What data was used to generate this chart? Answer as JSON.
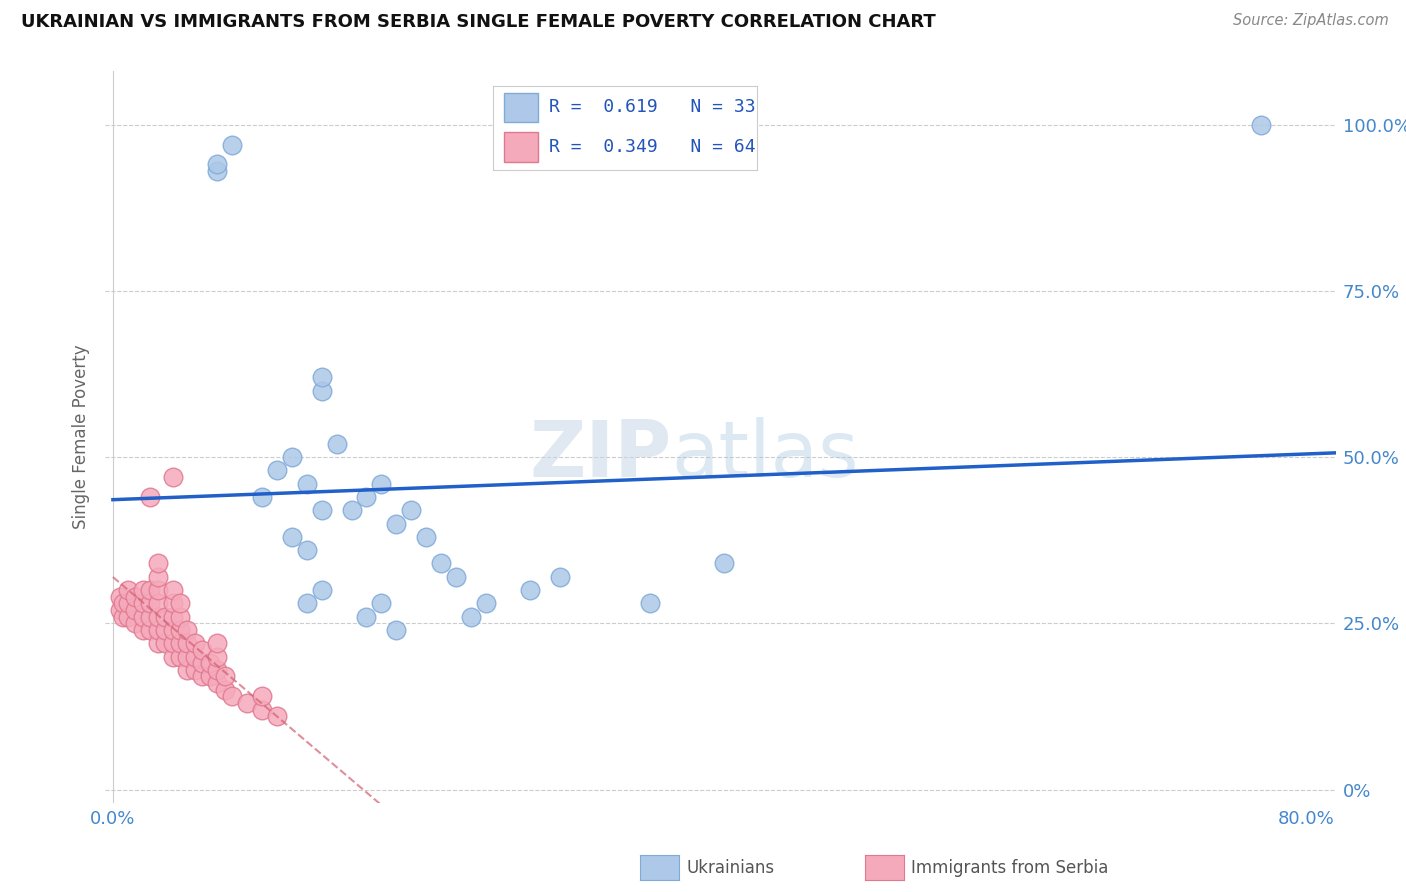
{
  "title": "UKRAINIAN VS IMMIGRANTS FROM SERBIA SINGLE FEMALE POVERTY CORRELATION CHART",
  "source": "Source: ZipAtlas.com",
  "ylabel": "Single Female Poverty",
  "xlim": [
    -0.005,
    0.82
  ],
  "ylim": [
    -0.02,
    1.08
  ],
  "x_ticks": [
    0.0,
    0.2,
    0.4,
    0.6,
    0.8
  ],
  "x_tick_labels": [
    "0.0%",
    "",
    "",
    "",
    "80.0%"
  ],
  "y_ticks": [
    0.0,
    0.25,
    0.5,
    0.75,
    1.0
  ],
  "y_tick_labels_right": [
    "0%",
    "25.0%",
    "50.0%",
    "75.0%",
    "100.0%"
  ],
  "legend_r1": "R =  0.619",
  "legend_n1": "N = 33",
  "legend_r2": "R =  0.349",
  "legend_n2": "N = 64",
  "ukraine_color": "#adc8e8",
  "serbia_color": "#f5aabb",
  "ukraine_edge_color": "#80aad8",
  "serbia_edge_color": "#e07890",
  "regression_blue_color": "#2060c8",
  "regression_pink_color": "#d06070",
  "watermark_zip": "ZIP",
  "watermark_atlas": "atlas",
  "ukraine_x": [
    0.14,
    0.14,
    0.15,
    0.1,
    0.11,
    0.12,
    0.13,
    0.14,
    0.12,
    0.13,
    0.16,
    0.17,
    0.18,
    0.19,
    0.2,
    0.21,
    0.13,
    0.14,
    0.22,
    0.23,
    0.17,
    0.18,
    0.19,
    0.24,
    0.25,
    0.28,
    0.3,
    0.36,
    0.41,
    0.07,
    0.07,
    0.08,
    0.77
  ],
  "ukraine_y": [
    0.6,
    0.62,
    0.52,
    0.44,
    0.48,
    0.5,
    0.46,
    0.42,
    0.38,
    0.36,
    0.42,
    0.44,
    0.46,
    0.4,
    0.42,
    0.38,
    0.28,
    0.3,
    0.34,
    0.32,
    0.26,
    0.28,
    0.24,
    0.26,
    0.28,
    0.3,
    0.32,
    0.28,
    0.34,
    0.93,
    0.94,
    0.97,
    1.0
  ],
  "serbia_x": [
    0.005,
    0.005,
    0.007,
    0.007,
    0.01,
    0.01,
    0.01,
    0.015,
    0.015,
    0.015,
    0.02,
    0.02,
    0.02,
    0.02,
    0.025,
    0.025,
    0.025,
    0.025,
    0.03,
    0.03,
    0.03,
    0.03,
    0.03,
    0.03,
    0.03,
    0.035,
    0.035,
    0.035,
    0.04,
    0.04,
    0.04,
    0.04,
    0.04,
    0.04,
    0.045,
    0.045,
    0.045,
    0.045,
    0.045,
    0.05,
    0.05,
    0.05,
    0.05,
    0.055,
    0.055,
    0.055,
    0.06,
    0.06,
    0.06,
    0.065,
    0.065,
    0.07,
    0.07,
    0.07,
    0.07,
    0.075,
    0.075,
    0.08,
    0.09,
    0.1,
    0.1,
    0.11,
    0.025,
    0.04
  ],
  "serbia_y": [
    0.27,
    0.29,
    0.26,
    0.28,
    0.26,
    0.28,
    0.3,
    0.25,
    0.27,
    0.29,
    0.24,
    0.26,
    0.28,
    0.3,
    0.24,
    0.26,
    0.28,
    0.3,
    0.22,
    0.24,
    0.26,
    0.28,
    0.3,
    0.32,
    0.34,
    0.22,
    0.24,
    0.26,
    0.2,
    0.22,
    0.24,
    0.26,
    0.28,
    0.3,
    0.2,
    0.22,
    0.24,
    0.26,
    0.28,
    0.18,
    0.2,
    0.22,
    0.24,
    0.18,
    0.2,
    0.22,
    0.17,
    0.19,
    0.21,
    0.17,
    0.19,
    0.16,
    0.18,
    0.2,
    0.22,
    0.15,
    0.17,
    0.14,
    0.13,
    0.12,
    0.14,
    0.11,
    0.44,
    0.47
  ]
}
